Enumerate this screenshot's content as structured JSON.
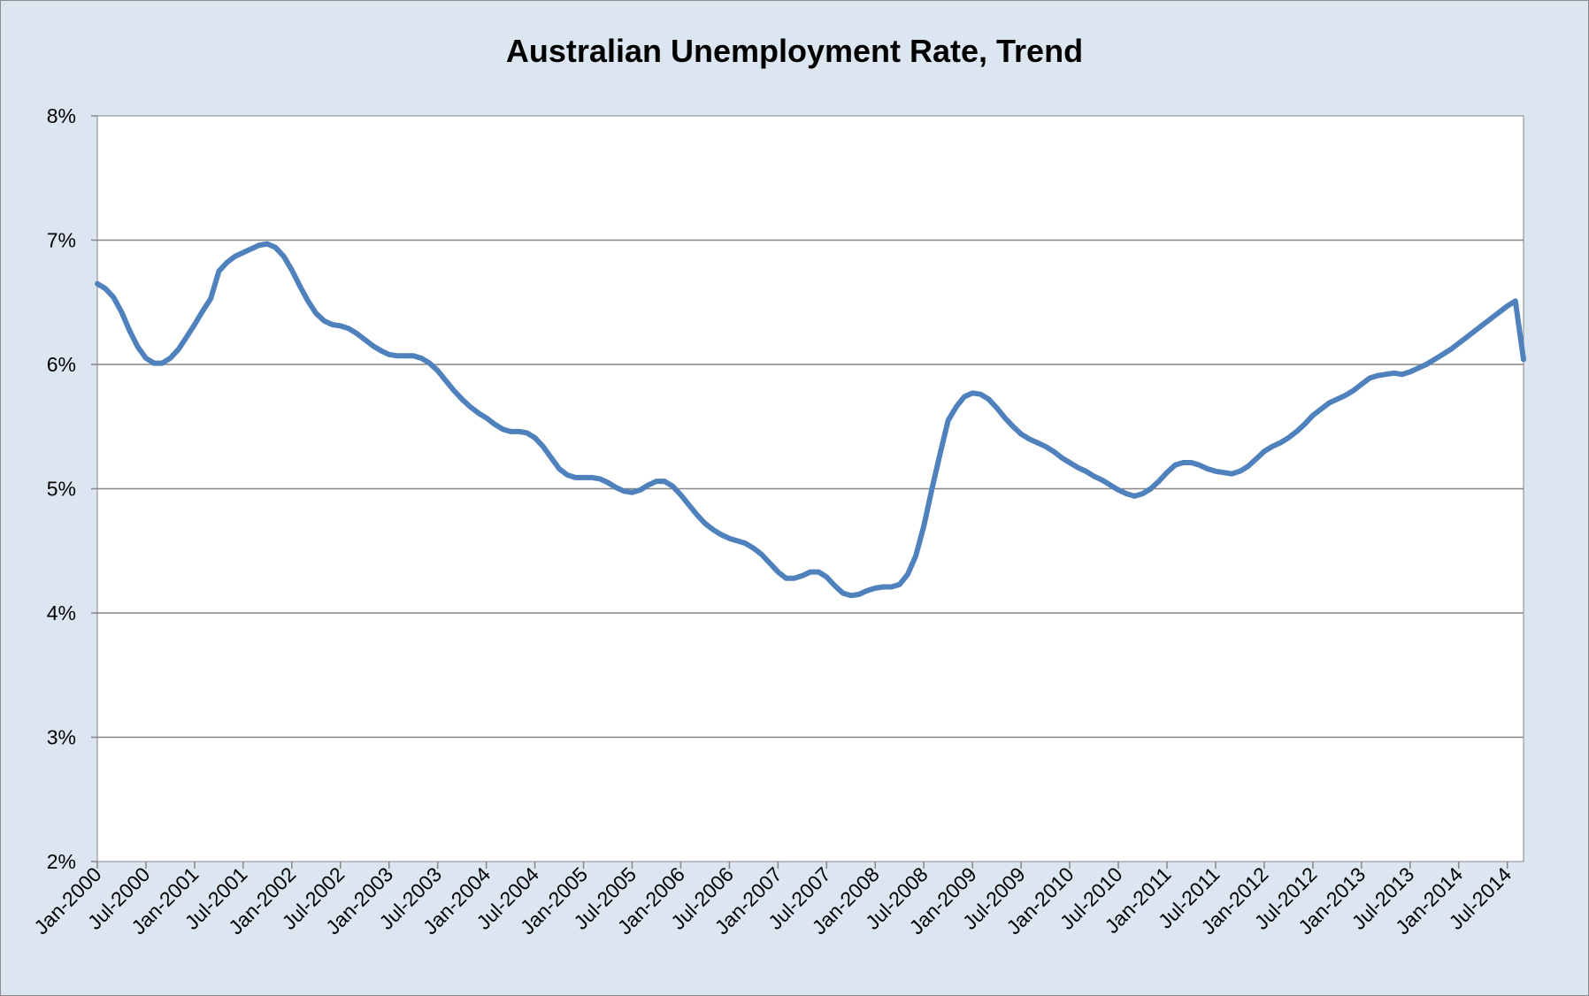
{
  "colors": {
    "background": "#dce6f1",
    "plot_area": "#ffffff",
    "line": "#4f81bd",
    "grid": "#868686"
  },
  "chart_data": {
    "type": "line",
    "title": "Australian Unemployment Rate, Trend",
    "xlabel": "",
    "ylabel": "",
    "ylim": [
      0.02,
      0.08
    ],
    "yticks": [
      0.02,
      0.03,
      0.04,
      0.05,
      0.06,
      0.07,
      0.08
    ],
    "ytick_labels": [
      "2%",
      "3%",
      "4%",
      "5%",
      "6%",
      "7%",
      "8%"
    ],
    "xlim": [
      "2000-01",
      "2014-09"
    ],
    "xtick_labels": [
      "Jan-2000",
      "Jul-2000",
      "Jan-2001",
      "Jul-2001",
      "Jan-2002",
      "Jul-2002",
      "Jan-2003",
      "Jul-2003",
      "Jan-2004",
      "Jul-2004",
      "Jan-2005",
      "Jul-2005",
      "Jan-2006",
      "Jul-2006",
      "Jan-2007",
      "Jul-2007",
      "Jan-2008",
      "Jul-2008",
      "Jan-2009",
      "Jul-2009",
      "Jan-2010",
      "Jul-2010",
      "Jan-2011",
      "Jul-2011",
      "Jan-2012",
      "Jul-2012",
      "Jan-2013",
      "Jul-2013",
      "Jan-2014",
      "Jul-2014"
    ],
    "grid": "horizontal",
    "legend": "none",
    "series": [
      {
        "points": [
          [
            "2000-01",
            0.0665
          ],
          [
            "2000-02",
            0.0661
          ],
          [
            "2000-03",
            0.0654
          ],
          [
            "2000-04",
            0.0642
          ],
          [
            "2000-05",
            0.0627
          ],
          [
            "2000-06",
            0.0614
          ],
          [
            "2000-07",
            0.0605
          ],
          [
            "2000-08",
            0.0601
          ],
          [
            "2000-09",
            0.0601
          ],
          [
            "2000-10",
            0.0605
          ],
          [
            "2000-11",
            0.0612
          ],
          [
            "2000-12",
            0.0622
          ],
          [
            "2001-01",
            0.0632
          ],
          [
            "2001-02",
            0.0643
          ],
          [
            "2001-03",
            0.0653
          ],
          [
            "2001-04",
            0.0675
          ],
          [
            "2001-05",
            0.0682
          ],
          [
            "2001-06",
            0.0687
          ],
          [
            "2001-07",
            0.069
          ],
          [
            "2001-08",
            0.0693
          ],
          [
            "2001-09",
            0.0696
          ],
          [
            "2001-10",
            0.0697
          ],
          [
            "2001-11",
            0.0694
          ],
          [
            "2001-12",
            0.0687
          ],
          [
            "2002-01",
            0.0676
          ],
          [
            "2002-02",
            0.0663
          ],
          [
            "2002-03",
            0.0651
          ],
          [
            "2002-04",
            0.0641
          ],
          [
            "2002-05",
            0.0635
          ],
          [
            "2002-06",
            0.0632
          ],
          [
            "2002-07",
            0.0631
          ],
          [
            "2002-08",
            0.0629
          ],
          [
            "2002-09",
            0.0625
          ],
          [
            "2002-10",
            0.062
          ],
          [
            "2002-11",
            0.0615
          ],
          [
            "2002-12",
            0.0611
          ],
          [
            "2003-01",
            0.0608
          ],
          [
            "2003-02",
            0.0607
          ],
          [
            "2003-03",
            0.0607
          ],
          [
            "2003-04",
            0.0607
          ],
          [
            "2003-05",
            0.0605
          ],
          [
            "2003-06",
            0.0601
          ],
          [
            "2003-07",
            0.0595
          ],
          [
            "2003-08",
            0.0587
          ],
          [
            "2003-09",
            0.0579
          ],
          [
            "2003-10",
            0.0572
          ],
          [
            "2003-11",
            0.0566
          ],
          [
            "2003-12",
            0.0561
          ],
          [
            "2004-01",
            0.0557
          ],
          [
            "2004-02",
            0.0552
          ],
          [
            "2004-03",
            0.0548
          ],
          [
            "2004-04",
            0.0546
          ],
          [
            "2004-05",
            0.0546
          ],
          [
            "2004-06",
            0.0545
          ],
          [
            "2004-07",
            0.0541
          ],
          [
            "2004-08",
            0.0534
          ],
          [
            "2004-09",
            0.0525
          ],
          [
            "2004-10",
            0.0516
          ],
          [
            "2004-11",
            0.0511
          ],
          [
            "2004-12",
            0.0509
          ],
          [
            "2005-01",
            0.0509
          ],
          [
            "2005-02",
            0.0509
          ],
          [
            "2005-03",
            0.0508
          ],
          [
            "2005-04",
            0.0505
          ],
          [
            "2005-05",
            0.0501
          ],
          [
            "2005-06",
            0.0498
          ],
          [
            "2005-07",
            0.0497
          ],
          [
            "2005-08",
            0.0499
          ],
          [
            "2005-09",
            0.0503
          ],
          [
            "2005-10",
            0.0506
          ],
          [
            "2005-11",
            0.0506
          ],
          [
            "2005-12",
            0.0502
          ],
          [
            "2006-01",
            0.0495
          ],
          [
            "2006-02",
            0.0487
          ],
          [
            "2006-03",
            0.0479
          ],
          [
            "2006-04",
            0.0472
          ],
          [
            "2006-05",
            0.0467
          ],
          [
            "2006-06",
            0.0463
          ],
          [
            "2006-07",
            0.046
          ],
          [
            "2006-08",
            0.0458
          ],
          [
            "2006-09",
            0.0456
          ],
          [
            "2006-10",
            0.0452
          ],
          [
            "2006-11",
            0.0447
          ],
          [
            "2006-12",
            0.044
          ],
          [
            "2007-01",
            0.0433
          ],
          [
            "2007-02",
            0.0428
          ],
          [
            "2007-03",
            0.0428
          ],
          [
            "2007-04",
            0.043
          ],
          [
            "2007-05",
            0.0433
          ],
          [
            "2007-06",
            0.0433
          ],
          [
            "2007-07",
            0.0429
          ],
          [
            "2007-08",
            0.0422
          ],
          [
            "2007-09",
            0.0416
          ],
          [
            "2007-10",
            0.0414
          ],
          [
            "2007-11",
            0.0415
          ],
          [
            "2007-12",
            0.0418
          ],
          [
            "2008-01",
            0.042
          ],
          [
            "2008-02",
            0.0421
          ],
          [
            "2008-03",
            0.0421
          ],
          [
            "2008-04",
            0.0423
          ],
          [
            "2008-05",
            0.0431
          ],
          [
            "2008-06",
            0.0446
          ],
          [
            "2008-07",
            0.047
          ],
          [
            "2008-08",
            0.05
          ],
          [
            "2008-09",
            0.0528
          ],
          [
            "2008-10",
            0.0555
          ],
          [
            "2008-11",
            0.0566
          ],
          [
            "2008-12",
            0.0574
          ],
          [
            "2009-01",
            0.0577
          ],
          [
            "2009-02",
            0.0576
          ],
          [
            "2009-03",
            0.0572
          ],
          [
            "2009-04",
            0.0565
          ],
          [
            "2009-05",
            0.0557
          ],
          [
            "2009-06",
            0.055
          ],
          [
            "2009-07",
            0.0544
          ],
          [
            "2009-08",
            0.054
          ],
          [
            "2009-09",
            0.0537
          ],
          [
            "2009-10",
            0.0534
          ],
          [
            "2009-11",
            0.053
          ],
          [
            "2009-12",
            0.0525
          ],
          [
            "2010-01",
            0.0521
          ],
          [
            "2010-02",
            0.0517
          ],
          [
            "2010-03",
            0.0514
          ],
          [
            "2010-04",
            0.051
          ],
          [
            "2010-05",
            0.0507
          ],
          [
            "2010-06",
            0.0503
          ],
          [
            "2010-07",
            0.0499
          ],
          [
            "2010-08",
            0.0496
          ],
          [
            "2010-09",
            0.0494
          ],
          [
            "2010-10",
            0.0496
          ],
          [
            "2010-11",
            0.05
          ],
          [
            "2010-12",
            0.0506
          ],
          [
            "2011-01",
            0.0513
          ],
          [
            "2011-02",
            0.0519
          ],
          [
            "2011-03",
            0.0521
          ],
          [
            "2011-04",
            0.0521
          ],
          [
            "2011-05",
            0.0519
          ],
          [
            "2011-06",
            0.0516
          ],
          [
            "2011-07",
            0.0514
          ],
          [
            "2011-08",
            0.0513
          ],
          [
            "2011-09",
            0.0512
          ],
          [
            "2011-10",
            0.0514
          ],
          [
            "2011-11",
            0.0518
          ],
          [
            "2011-12",
            0.0524
          ],
          [
            "2012-01",
            0.053
          ],
          [
            "2012-02",
            0.0534
          ],
          [
            "2012-03",
            0.0537
          ],
          [
            "2012-04",
            0.0541
          ],
          [
            "2012-05",
            0.0546
          ],
          [
            "2012-06",
            0.0552
          ],
          [
            "2012-07",
            0.0559
          ],
          [
            "2012-08",
            0.0564
          ],
          [
            "2012-09",
            0.0569
          ],
          [
            "2012-10",
            0.0572
          ],
          [
            "2012-11",
            0.0575
          ],
          [
            "2012-12",
            0.0579
          ],
          [
            "2013-01",
            0.0584
          ],
          [
            "2013-02",
            0.0589
          ],
          [
            "2013-03",
            0.0591
          ],
          [
            "2013-04",
            0.0592
          ],
          [
            "2013-05",
            0.0593
          ],
          [
            "2013-06",
            0.0592
          ],
          [
            "2013-07",
            0.0594
          ],
          [
            "2013-08",
            0.0597
          ],
          [
            "2013-09",
            0.06
          ],
          [
            "2013-10",
            0.0604
          ],
          [
            "2013-11",
            0.0608
          ],
          [
            "2013-12",
            0.0612
          ],
          [
            "2014-01",
            0.0617
          ],
          [
            "2014-02",
            0.0622
          ],
          [
            "2014-03",
            0.0627
          ],
          [
            "2014-04",
            0.0632
          ],
          [
            "2014-05",
            0.0637
          ],
          [
            "2014-06",
            0.0642
          ],
          [
            "2014-07",
            0.0647
          ],
          [
            "2014-08",
            0.0651
          ],
          [
            "2014-09",
            0.0604
          ]
        ]
      }
    ]
  }
}
